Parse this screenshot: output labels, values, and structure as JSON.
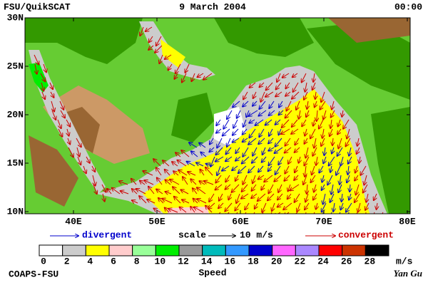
{
  "header": {
    "product": "FSU/QuikSCAT",
    "date": "9 March 2004",
    "time": "00:00"
  },
  "map": {
    "lat_labels": [
      "30N",
      "25N",
      "20N",
      "15N",
      "10N"
    ],
    "lon_labels": [
      "40E",
      "50E",
      "60E",
      "70E",
      "80E"
    ]
  },
  "legend": {
    "divergent": "divergent",
    "scale": "scale",
    "scale_value": "10 m/s",
    "convergent": "convergent"
  },
  "colorbar": {
    "colors": [
      "#ffffff",
      "#cccccc",
      "#ffff00",
      "#ffcccc",
      "#99ff99",
      "#00ee00",
      "#999999",
      "#00bbbb",
      "#3399ff",
      "#0000cc",
      "#ff66ff",
      "#aa88ff",
      "#ff0000",
      "#cc3300",
      "#000000"
    ],
    "labels": [
      0,
      2,
      4,
      6,
      8,
      10,
      12,
      14,
      16,
      18,
      20,
      22,
      24,
      26,
      28
    ],
    "unit": "m/s",
    "title": "Speed"
  },
  "footer": {
    "left": "COAPS-FSU",
    "right": "Yan Gu"
  }
}
